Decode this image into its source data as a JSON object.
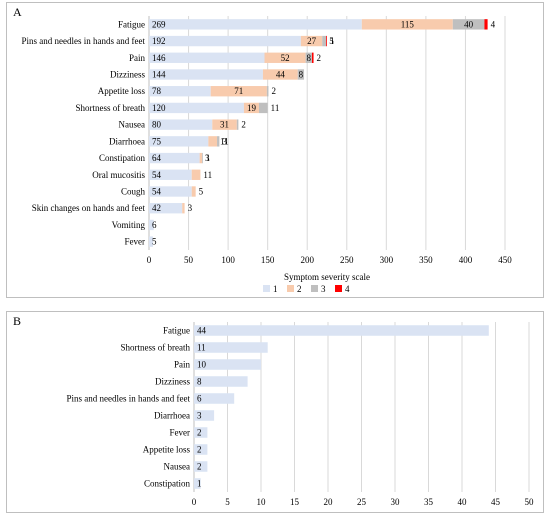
{
  "chart_data": [
    {
      "panel_label": "A",
      "type": "bar",
      "orientation": "horizontal",
      "stacked": true,
      "categories": [
        "Fatigue",
        "Pins and needles in hands and feet",
        "Pain",
        "Dizziness",
        "Appetite loss",
        "Shortness of breath",
        "Nausea",
        "Diarrhoea",
        "Constipation",
        "Oral mucositis",
        "Cough",
        "Skin changes on hands and feet",
        "Vomiting",
        "Fever"
      ],
      "series": [
        {
          "name": "1",
          "color": "#dae3f3",
          "values": [
            269,
            192,
            146,
            144,
            78,
            120,
            80,
            75,
            64,
            54,
            54,
            42,
            6,
            5
          ],
          "labels": [
            "269",
            "192",
            "146",
            "144",
            "78",
            "120",
            "80",
            "75",
            "64",
            "54",
            "54",
            "42",
            "6",
            "5"
          ]
        },
        {
          "name": "2",
          "color": "#f8cbad",
          "values": [
            115,
            27,
            52,
            44,
            71,
            19,
            31,
            11,
            3,
            11,
            5,
            3,
            0,
            0
          ],
          "labels": [
            "115",
            "27",
            "52",
            "44",
            "71",
            "19",
            "31",
            "11",
            "3",
            "11",
            "5",
            "3",
            "",
            ""
          ]
        },
        {
          "name": "3",
          "color": "#bfbfbf",
          "values": [
            40,
            5,
            8,
            8,
            2,
            11,
            2,
            3,
            1,
            0,
            0,
            0,
            0,
            0
          ],
          "labels": [
            "40",
            "5",
            "8",
            "8",
            "2",
            "11",
            "2",
            "3",
            "1",
            "",
            "",
            "",
            "",
            ""
          ]
        },
        {
          "name": "4",
          "color": "#ff0000",
          "values": [
            4,
            1,
            2,
            0,
            0,
            0,
            0,
            0,
            0,
            0,
            0,
            0,
            0,
            0
          ],
          "labels": [
            "4",
            "1",
            "2",
            "",
            "",
            "",
            "",
            "",
            "",
            "",
            "",
            "",
            "",
            ""
          ]
        }
      ],
      "xlabel": "Symptom severity scale",
      "xlim": [
        0,
        450
      ],
      "xticks": [
        0,
        50,
        100,
        150,
        200,
        250,
        300,
        350,
        400,
        450
      ],
      "grid": true,
      "legend": "bottom"
    },
    {
      "panel_label": "B",
      "type": "bar",
      "orientation": "horizontal",
      "categories": [
        "Fatigue",
        "Shortness of breath",
        "Pain",
        "Dizziness",
        "Pins and needles in hands and feet",
        "Diarrhoea",
        "Fever",
        "Appetite loss",
        "Nausea",
        "Constipation"
      ],
      "series": [
        {
          "color": "#dae3f3",
          "values": [
            44,
            11,
            10,
            8,
            6,
            3,
            2,
            2,
            2,
            1
          ],
          "labels": [
            "44",
            "11",
            "10",
            "8",
            "6",
            "3",
            "2",
            "2",
            "2",
            "1"
          ]
        }
      ],
      "xlim": [
        0,
        50
      ],
      "xticks": [
        0,
        5,
        10,
        15,
        20,
        25,
        30,
        35,
        40,
        45,
        50
      ],
      "grid": true
    }
  ]
}
